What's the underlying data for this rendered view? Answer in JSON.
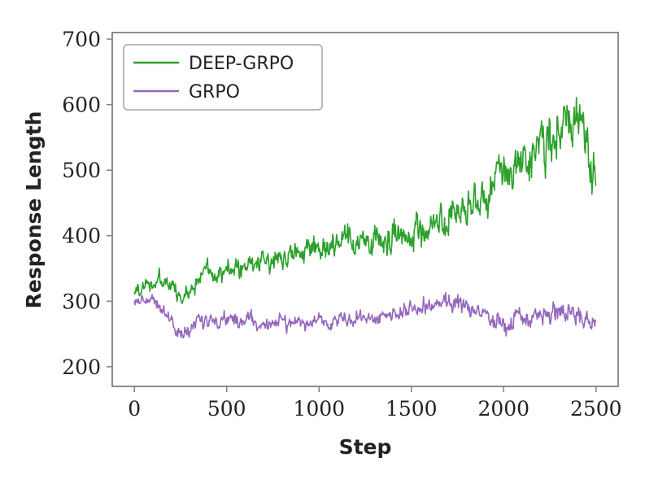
{
  "chart_data": {
    "type": "line",
    "title": "",
    "xlabel": "Step",
    "ylabel": "Response Length",
    "xlim": [
      -120,
      2620
    ],
    "ylim": [
      170,
      710
    ],
    "xticks": [
      0,
      500,
      1000,
      1500,
      2000,
      2500
    ],
    "yticks": [
      200,
      300,
      400,
      500,
      600,
      700
    ],
    "xtick_labels": [
      "0",
      "500",
      "1000",
      "1500",
      "2000",
      "2500"
    ],
    "ytick_labels": [
      "200",
      "300",
      "400",
      "500",
      "600",
      "700"
    ],
    "grid": false,
    "legend_position": "top-left",
    "series": [
      {
        "name": "DEEP-GRPO",
        "color": "#2ca02c",
        "x": [
          0,
          100,
          200,
          250,
          300,
          400,
          500,
          600,
          700,
          800,
          900,
          1000,
          1100,
          1200,
          1300,
          1400,
          1500,
          1600,
          1700,
          1800,
          1900,
          2000,
          2100,
          2200,
          2300,
          2400,
          2450,
          2500
        ],
        "y": [
          315,
          330,
          325,
          300,
          320,
          350,
          345,
          350,
          360,
          370,
          375,
          380,
          385,
          390,
          390,
          400,
          405,
          410,
          420,
          430,
          460,
          500,
          520,
          540,
          560,
          580,
          530,
          500
        ],
        "noise_amplitude": [
          20,
          25,
          25,
          25,
          25,
          30,
          30,
          30,
          30,
          35,
          35,
          35,
          40,
          40,
          40,
          45,
          45,
          45,
          50,
          50,
          55,
          60,
          65,
          65,
          70,
          70,
          70,
          60
        ]
      },
      {
        "name": "GRPO",
        "color": "#9467bd",
        "x": [
          0,
          100,
          200,
          250,
          300,
          400,
          500,
          600,
          700,
          800,
          900,
          1000,
          1100,
          1200,
          1300,
          1400,
          1500,
          1600,
          1700,
          1800,
          1900,
          2000,
          2100,
          2200,
          2300,
          2400,
          2500
        ],
        "y": [
          300,
          305,
          270,
          245,
          260,
          270,
          275,
          270,
          265,
          270,
          265,
          270,
          270,
          275,
          275,
          280,
          285,
          290,
          300,
          290,
          280,
          265,
          270,
          275,
          285,
          275,
          270
        ],
        "noise_amplitude": [
          15,
          15,
          20,
          20,
          20,
          20,
          20,
          20,
          20,
          20,
          20,
          20,
          20,
          20,
          20,
          20,
          22,
          25,
          25,
          25,
          25,
          30,
          25,
          25,
          30,
          25,
          25
        ]
      }
    ]
  }
}
